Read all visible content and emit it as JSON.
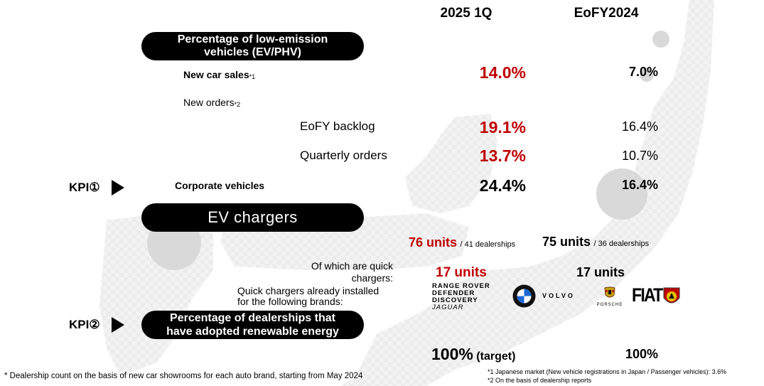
{
  "headers": {
    "col1": "2025 1Q",
    "col2": "EoFY2024"
  },
  "section_low_emission": {
    "title": "Percentage of low-emission vehicles (EV/PHV)",
    "new_car_sales": {
      "label": "New car sales",
      "sup": "*1",
      "q1": "14.0%",
      "eofy": "7.0%"
    },
    "new_orders": {
      "label": "New orders",
      "sup": "*2"
    },
    "eofy_backlog": {
      "label": "EoFY backlog",
      "q1": "19.1%",
      "eofy": "16.4%"
    },
    "quarterly_orders": {
      "label": "Quarterly orders",
      "q1": "13.7%",
      "eofy": "10.7%"
    },
    "corporate": {
      "kpi": "KPI①",
      "label": "Corporate vehicles",
      "q1": "24.4%",
      "eofy": "16.4%"
    }
  },
  "section_ev_chargers": {
    "title": "EV chargers",
    "total": {
      "q1_units": "76 units",
      "q1_sub": "/ 41 dealerships",
      "eofy_units": "75 units",
      "eofy_sub": "/ 36 dealerships"
    },
    "quick": {
      "label": "Of which are quick chargers:",
      "q1": "17 units",
      "eofy": "17 units"
    },
    "brands_label": "Quick chargers already installed for the following brands:",
    "jlr_brands": [
      "RANGE ROVER",
      "DEFENDER",
      "DISCOVERY",
      "JAGUAR"
    ],
    "other_brands": [
      "BMW",
      "VOLVO",
      "PORSCHE",
      "FIAT",
      "ABARTH"
    ]
  },
  "section_renewable": {
    "kpi": "KPI②",
    "title": "Percentage of dealerships that have adopted renewable energy",
    "q1": "100%",
    "q1_note": "(target)",
    "eofy": "100%"
  },
  "footnotes": {
    "dealership": "* Dealership count on the basis of new car showrooms for each auto brand, starting from May 2024",
    "note1": "*1 Japanese market (New vehicle registrations in Japan / Passenger vehicles): 3.6%",
    "note2": "*2 On the basis of dealership reports"
  },
  "colors": {
    "accent_red": "#c00000",
    "pill": "#000000",
    "bg_map": "#f2f2f2",
    "bg_circle": "#d9d9d9"
  }
}
